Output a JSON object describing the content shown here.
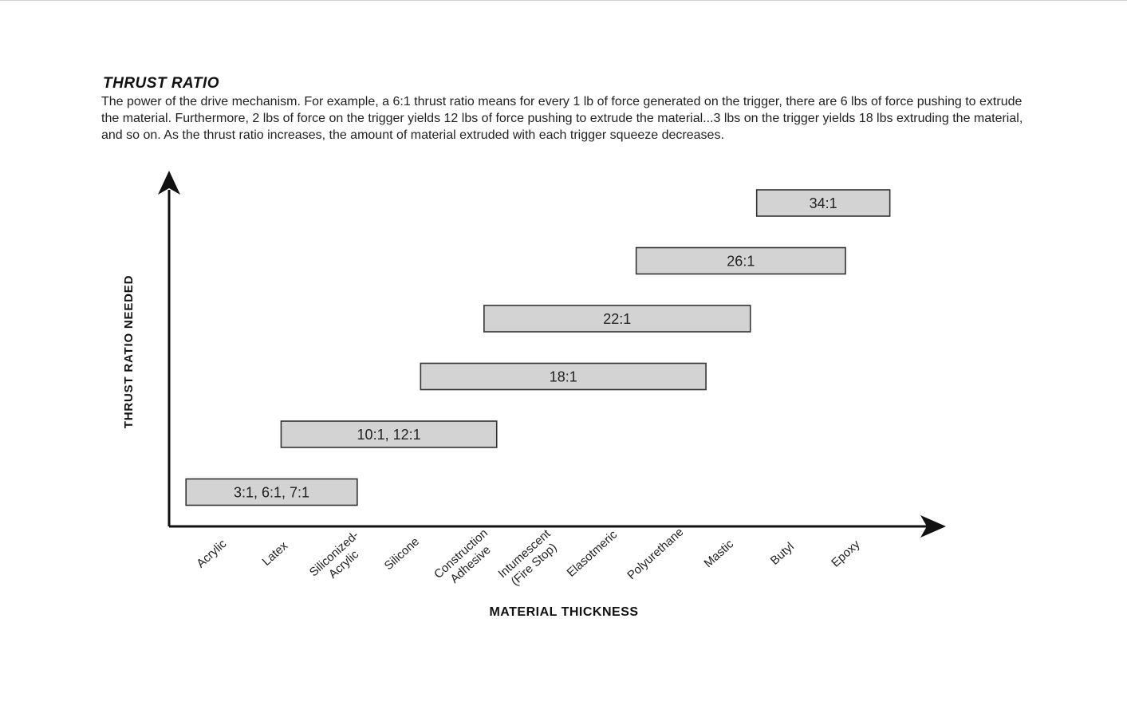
{
  "header": {
    "title": "THRUST RATIO",
    "description": "The power of the drive mechanism. For example, a 6:1 thrust ratio means for every 1 lb of force generated on the trigger, there are 6 lbs of force pushing to extrude the material.  Furthermore, 2 lbs of force on the trigger yields 12 lbs of force pushing to extrude the material...3 lbs on the trigger yields 18 lbs extruding the material, and so on.  As the thrust ratio increases, the amount of material extruded with each trigger squeeze decreases."
  },
  "chart_data": {
    "type": "range-bar",
    "xlabel": "MATERIAL THICKNESS",
    "ylabel": "THRUST RATIO NEEDED",
    "categories": [
      [
        "Acrylic"
      ],
      [
        "Latex"
      ],
      [
        "Siliconized-",
        "Acrylic"
      ],
      [
        "Silicone"
      ],
      [
        "Construction",
        "Adhesive"
      ],
      [
        "Intumescent",
        "(Fire Stop)"
      ],
      [
        "Elasotmeric"
      ],
      [
        "Polyurethane"
      ],
      [
        "Mastic"
      ],
      [
        "Butyl"
      ],
      [
        "Epoxy"
      ]
    ],
    "bars": [
      {
        "label": "3:1, 6:1, 7:1",
        "level": 1,
        "start": -0.4,
        "end": 2.3
      },
      {
        "label": "10:1, 12:1",
        "level": 2,
        "start": 1.1,
        "end": 4.5
      },
      {
        "label": "18:1",
        "level": 3,
        "start": 3.3,
        "end": 7.8
      },
      {
        "label": "22:1",
        "level": 4,
        "start": 4.3,
        "end": 8.5
      },
      {
        "label": "26:1",
        "level": 5,
        "start": 6.7,
        "end": 10.0
      },
      {
        "label": "34:1",
        "level": 6,
        "start": 8.6,
        "end": 10.7
      }
    ],
    "bar_fill": "#d3d3d3",
    "bar_stroke": "#333333",
    "axis_color": "#111111",
    "grid": false,
    "legend": "none"
  }
}
